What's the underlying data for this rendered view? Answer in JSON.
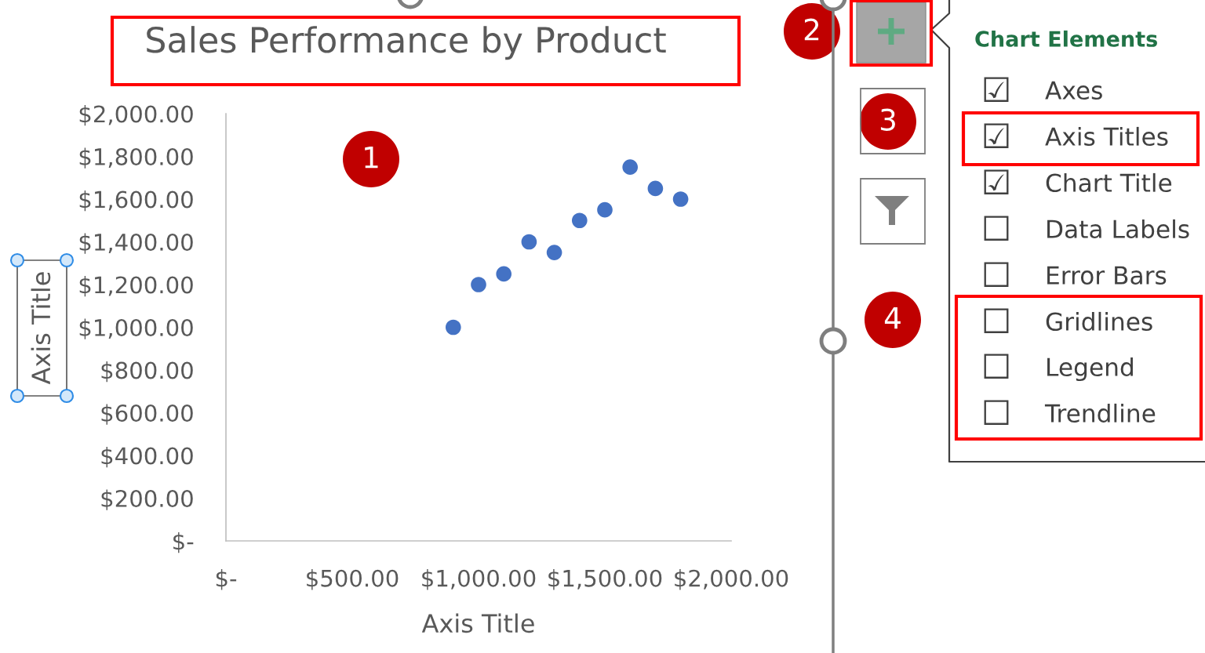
{
  "chart_data": [
    {
      "type": "scatter",
      "title": "Sales Performance by Product",
      "xlabel": "Axis Title",
      "ylabel": "Axis Title",
      "x": [
        900,
        1000,
        1100,
        1200,
        1300,
        1400,
        1500,
        1600,
        1700,
        1800
      ],
      "values": [
        1000,
        1200,
        1250,
        1400,
        1350,
        1500,
        1550,
        1750,
        1650,
        1600
      ],
      "color": "#4472c4",
      "marker": "circle",
      "xlim": [
        0,
        2000
      ],
      "ylim": [
        0,
        2000
      ],
      "xticks": [
        {
          "value": 0,
          "label": "$-"
        },
        {
          "value": 500,
          "label": "$500.00"
        },
        {
          "value": 1000,
          "label": "$1,000.00"
        },
        {
          "value": 1500,
          "label": "$1,500.00"
        },
        {
          "value": 2000,
          "label": "$2,000.00"
        }
      ],
      "yticks": [
        {
          "value": 0,
          "label": "$-"
        },
        {
          "value": 200,
          "label": "$200.00"
        },
        {
          "value": 400,
          "label": "$400.00"
        },
        {
          "value": 600,
          "label": "$600.00"
        },
        {
          "value": 800,
          "label": "$800.00"
        },
        {
          "value": 1000,
          "label": "$1,000.00"
        },
        {
          "value": 1200,
          "label": "$1,200.00"
        },
        {
          "value": 1400,
          "label": "$1,400.00"
        },
        {
          "value": 1600,
          "label": "$1,600.00"
        },
        {
          "value": 1800,
          "label": "$1,800.00"
        },
        {
          "value": 2000,
          "label": "$2,000.00"
        }
      ],
      "grid": false,
      "annotations": [
        "1"
      ]
    },
    {
      "type": "other",
      "title": "Chart Elements",
      "categories": [
        "Axes",
        "Axis Titles",
        "Chart Title",
        "Data Labels",
        "Error Bars",
        "Gridlines",
        "Legend",
        "Trendline"
      ],
      "annotations": [
        "2",
        "3",
        "4",
        "☑",
        "☑",
        "☑",
        "☐",
        "☐",
        "☐",
        "☐",
        "☐"
      ]
    }
  ]
}
